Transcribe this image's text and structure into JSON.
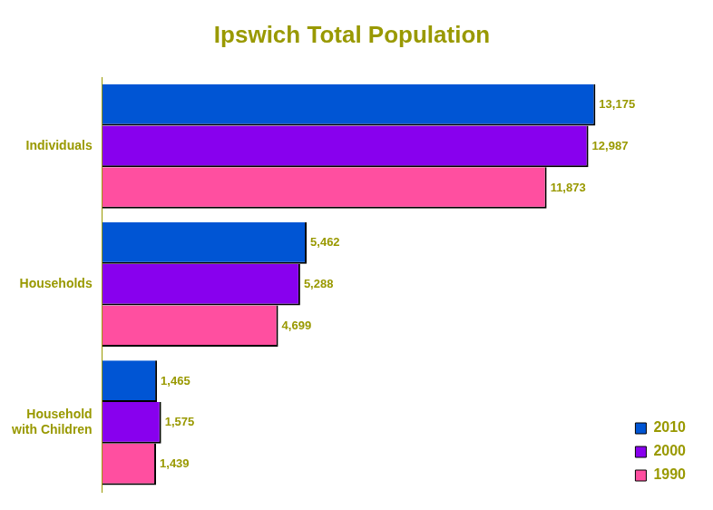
{
  "chart_data": {
    "type": "bar",
    "title": "Ipswich Total Population",
    "orientation": "horizontal",
    "categories": [
      "Individuals",
      "Households",
      "Household with Children"
    ],
    "series": [
      {
        "name": "2010",
        "color": "#0055d4",
        "values": [
          13175,
          5462,
          1465
        ],
        "value_labels": [
          "13,175",
          "5,462",
          "1,465"
        ]
      },
      {
        "name": "2000",
        "color": "#8800ee",
        "values": [
          12987,
          5288,
          1575
        ],
        "value_labels": [
          "12,987",
          "5,288",
          "1,575"
        ]
      },
      {
        "name": "1990",
        "color": "#ff4fa0",
        "values": [
          11873,
          4699,
          1439
        ],
        "value_labels": [
          "11,873",
          "4,699",
          "1,439"
        ]
      }
    ],
    "data_labels": true,
    "tick_labels": "y",
    "grid": false,
    "legend": "lower right"
  }
}
